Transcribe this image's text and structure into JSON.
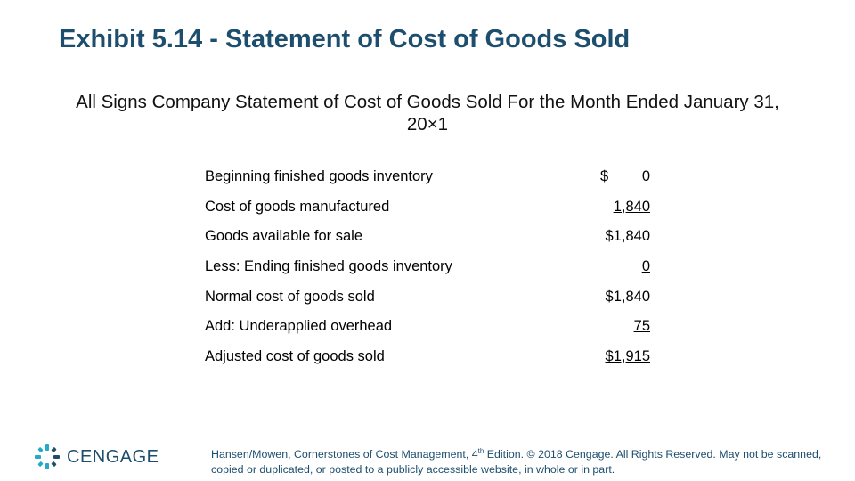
{
  "title": "Exhibit 5.14 - Statement of Cost of Goods Sold",
  "subtitle": "All Signs Company Statement of Cost of Goods Sold For the Month Ended January 31, 20×1",
  "statement": {
    "rows": [
      {
        "label": "Beginning finished goods inventory",
        "currency": "$",
        "value": "0",
        "underline": false
      },
      {
        "label": "Cost of goods manufactured",
        "currency": "",
        "value": "1,840",
        "underline": true
      },
      {
        "label": "Goods available for sale",
        "currency": "",
        "value": "$1,840",
        "underline": false
      },
      {
        "label": "Less: Ending finished goods inventory",
        "currency": "",
        "value": "0",
        "underline": true
      },
      {
        "label": "Normal cost of goods sold",
        "currency": "",
        "value": "$1,840",
        "underline": false
      },
      {
        "label": "Add: Underapplied overhead",
        "currency": "",
        "value": "75",
        "underline": true
      },
      {
        "label": "Adjusted cost of goods sold",
        "currency": "",
        "value": "$1,915",
        "underline": true
      }
    ]
  },
  "logo": {
    "text": "CENGAGE",
    "icon": "cengage-mark-icon",
    "color": "#1d4e6e",
    "accent": "#26a9c9"
  },
  "footer": {
    "part1": "Hansen/Mowen, Cornerstones of Cost Management, 4",
    "sup": "th",
    "part2": " Edition. © 2018 Cengage. All Rights Reserved. May not be scanned, copied or duplicated, or posted to a publicly accessible website, in whole or in part."
  }
}
